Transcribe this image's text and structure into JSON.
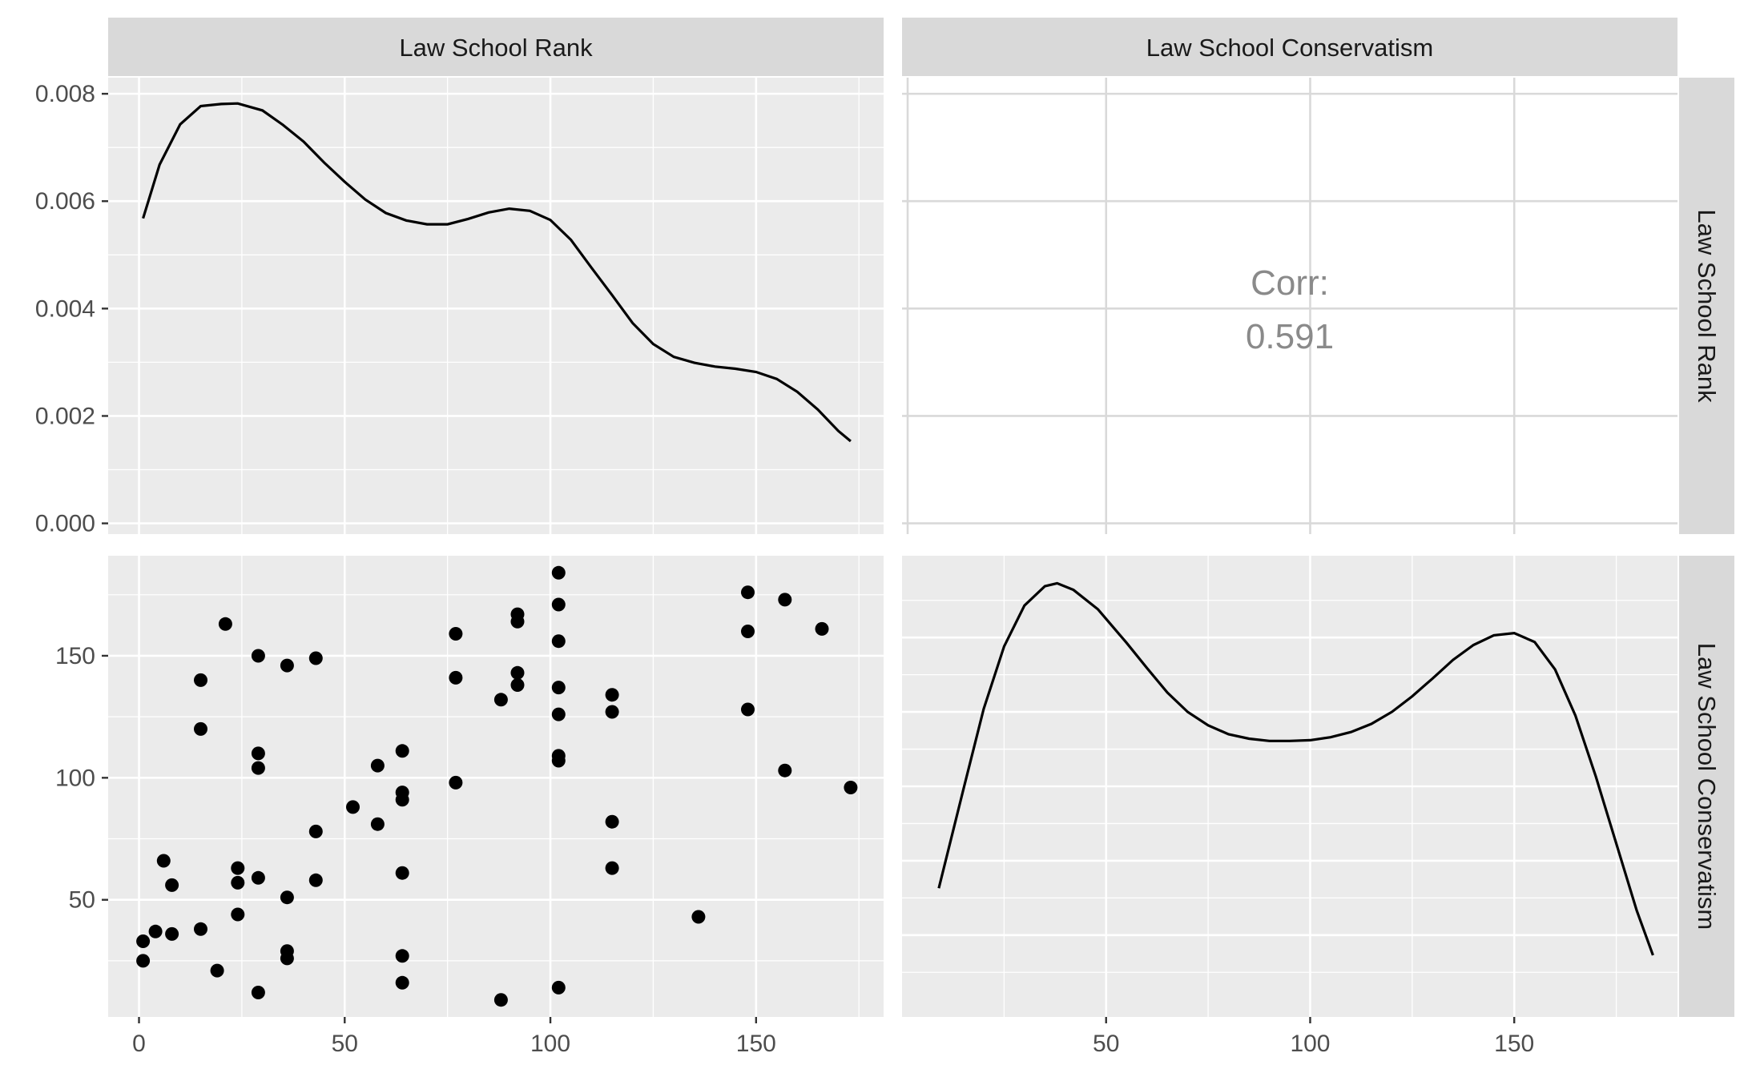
{
  "colors": {
    "panel_bg": "#ebebeb",
    "strip_bg": "#d9d9d9",
    "grid_major": "#ffffff",
    "corr_grid": "#d9d9d9",
    "tick": "#333333",
    "data": "#000000",
    "corr_text": "#8a8a8a"
  },
  "strips": {
    "top_left": "Law School Rank",
    "top_right": "Law School Conservatism",
    "right_top": "Law School Rank",
    "right_bottom": "Law School Conservatism"
  },
  "correlation": {
    "label": "Corr:",
    "value": "0.591"
  },
  "chart_data": [
    {
      "type": "line",
      "panel": "Law School Rank density",
      "x": [
        1,
        5,
        10,
        15,
        20,
        24,
        30,
        35,
        40,
        45,
        50,
        55,
        60,
        65,
        70,
        75,
        80,
        85,
        90,
        95,
        100,
        105,
        110,
        115,
        120,
        125,
        130,
        135,
        140,
        145,
        150,
        155,
        160,
        165,
        170,
        173
      ],
      "y": [
        0.00568,
        0.00668,
        0.00743,
        0.00777,
        0.00781,
        0.00782,
        0.00769,
        0.00742,
        0.00711,
        0.00672,
        0.00636,
        0.00603,
        0.00578,
        0.00564,
        0.00557,
        0.00557,
        0.00567,
        0.00579,
        0.00586,
        0.00582,
        0.00565,
        0.00528,
        0.00476,
        0.00425,
        0.00373,
        0.00334,
        0.0031,
        0.00299,
        0.00292,
        0.00288,
        0.00282,
        0.00269,
        0.00245,
        0.00212,
        0.00172,
        0.00153
      ],
      "ylim": [
        -0.0002,
        0.0083
      ],
      "xlim": [
        -7.5,
        181
      ],
      "y_ticks": [
        "0.000",
        "0.002",
        "0.004",
        "0.006",
        "0.008"
      ],
      "y_tick_values": [
        0,
        0.002,
        0.004,
        0.006,
        0.008
      ]
    },
    {
      "type": "scatter",
      "panel": "Law School Rank vs Law School Conservatism",
      "xlabel": "Law School Rank",
      "ylabel": "Law School Conservatism",
      "xlim": [
        -7.5,
        181
      ],
      "ylim": [
        2,
        191
      ],
      "x_ticks": [
        "0",
        "50",
        "100",
        "150"
      ],
      "x_tick_values": [
        0,
        50,
        100,
        150
      ],
      "y_ticks": [
        "50",
        "100",
        "150"
      ],
      "y_tick_values": [
        50,
        100,
        150
      ],
      "points": [
        [
          1,
          33
        ],
        [
          1,
          25
        ],
        [
          4,
          37
        ],
        [
          6,
          66
        ],
        [
          8,
          56
        ],
        [
          8,
          36
        ],
        [
          15,
          140
        ],
        [
          15,
          120
        ],
        [
          15,
          38
        ],
        [
          19,
          21
        ],
        [
          21,
          163
        ],
        [
          24,
          63
        ],
        [
          24,
          57
        ],
        [
          24,
          44
        ],
        [
          29,
          150
        ],
        [
          29,
          110
        ],
        [
          29,
          104
        ],
        [
          29,
          59
        ],
        [
          29,
          12
        ],
        [
          36,
          146
        ],
        [
          36,
          51
        ],
        [
          36,
          29
        ],
        [
          36,
          26
        ],
        [
          43,
          149
        ],
        [
          43,
          78
        ],
        [
          43,
          58
        ],
        [
          52,
          88
        ],
        [
          58,
          105
        ],
        [
          58,
          81
        ],
        [
          64,
          111
        ],
        [
          64,
          94
        ],
        [
          64,
          91
        ],
        [
          64,
          61
        ],
        [
          64,
          27
        ],
        [
          64,
          16
        ],
        [
          77,
          159
        ],
        [
          77,
          141
        ],
        [
          77,
          98
        ],
        [
          88,
          132
        ],
        [
          88,
          9
        ],
        [
          92,
          167
        ],
        [
          92,
          164
        ],
        [
          92,
          143
        ],
        [
          92,
          138
        ],
        [
          102,
          184
        ],
        [
          102,
          171
        ],
        [
          102,
          156
        ],
        [
          102,
          137
        ],
        [
          102,
          126
        ],
        [
          102,
          109
        ],
        [
          102,
          107
        ],
        [
          102,
          14
        ],
        [
          115,
          134
        ],
        [
          115,
          127
        ],
        [
          115,
          82
        ],
        [
          115,
          63
        ],
        [
          136,
          43
        ],
        [
          148,
          176
        ],
        [
          148,
          160
        ],
        [
          148,
          128
        ],
        [
          157,
          173
        ],
        [
          157,
          103
        ],
        [
          166,
          161
        ],
        [
          173,
          96
        ]
      ]
    },
    {
      "type": "line",
      "panel": "Law School Conservatism density",
      "x": [
        9,
        15,
        20,
        25,
        30,
        35,
        38,
        42,
        48,
        55,
        60,
        65,
        70,
        75,
        80,
        85,
        90,
        95,
        100,
        105,
        110,
        115,
        120,
        125,
        130,
        135,
        140,
        145,
        150,
        155,
        160,
        165,
        170,
        175,
        180,
        184
      ],
      "y": [
        0.00213,
        0.00345,
        0.00454,
        0.00538,
        0.00593,
        0.00619,
        0.00623,
        0.00614,
        0.00588,
        0.00543,
        0.00509,
        0.00476,
        0.0045,
        0.00432,
        0.0042,
        0.00414,
        0.00411,
        0.00411,
        0.00412,
        0.00416,
        0.00423,
        0.00434,
        0.0045,
        0.00471,
        0.00495,
        0.0052,
        0.0054,
        0.00553,
        0.00556,
        0.00544,
        0.00507,
        0.00445,
        0.00363,
        0.00273,
        0.00183,
        0.00123
      ],
      "xlim": [
        0,
        190
      ],
      "x_ticks": [
        "50",
        "100",
        "150"
      ],
      "x_tick_values": [
        50,
        100,
        150
      ]
    }
  ]
}
